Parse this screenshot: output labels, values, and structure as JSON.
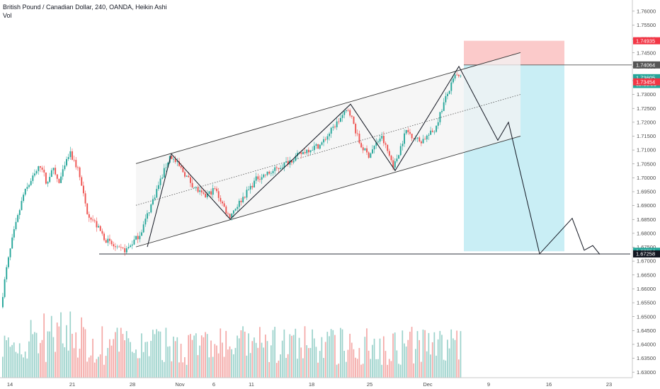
{
  "header": {
    "title": "British Pound / Canadian Dollar, 240, OANDA, Heikin Ashi",
    "volume_label": "Vol"
  },
  "colors": {
    "up": "#26a69a",
    "down": "#ef5350",
    "up_volume": "#9bd2cb",
    "down_volume": "#f4a8a6",
    "stop_zone": "#fbcaca",
    "target_zone": "#c9eef5",
    "channel_fill": "#f3f3f3",
    "line": "#131722"
  },
  "chart_data": {
    "type": "candlestick",
    "instrument": "British Pound / Canadian Dollar",
    "timeframe": "240",
    "source": "OANDA",
    "style": "Heikin Ashi",
    "y_axis": {
      "ylim": [
        1.6275,
        1.7625
      ],
      "ticks": [
        "1.76000",
        "1.75500",
        "1.75000",
        "1.74500",
        "1.74000",
        "1.73500",
        "1.73000",
        "1.72500",
        "1.72000",
        "1.71500",
        "1.71000",
        "1.70500",
        "1.70000",
        "1.69500",
        "1.69000",
        "1.68500",
        "1.68000",
        "1.67500",
        "1.67000",
        "1.66500",
        "1.66000",
        "1.65500",
        "1.65000",
        "1.64500",
        "1.64000",
        "1.63500",
        "1.63000"
      ]
    },
    "x_axis": {
      "ticks": [
        "14",
        "21",
        "28",
        "Nov",
        "6",
        "11",
        "18",
        "25",
        "Dec",
        "9",
        "16",
        "23"
      ]
    },
    "price_labels": [
      {
        "text": "1.74935",
        "value": 1.74935,
        "color": "#f23645"
      },
      {
        "text": "1.74064",
        "value": 1.74064,
        "color": "#555555"
      },
      {
        "text": "1.73605",
        "value": 1.73605,
        "color": "#26a69a"
      },
      {
        "text": "02:39:29",
        "value": 1.7336,
        "color": "#26a69a"
      },
      {
        "text": "1.73454",
        "value": 1.73454,
        "color": "#f23645"
      },
      {
        "text": "1.67354",
        "value": 1.67354,
        "color": "#26a69a"
      },
      {
        "text": "1.67258",
        "value": 1.67258,
        "color": "#131722"
      }
    ],
    "anchors": [
      {
        "x": 0,
        "y": 1.648
      },
      {
        "x": 10,
        "y": 1.666
      },
      {
        "x": 20,
        "y": 1.679
      },
      {
        "x": 35,
        "y": 1.694
      },
      {
        "x": 48,
        "y": 1.7
      },
      {
        "x": 60,
        "y": 1.705
      },
      {
        "x": 68,
        "y": 1.697
      },
      {
        "x": 75,
        "y": 1.704
      },
      {
        "x": 85,
        "y": 1.698
      },
      {
        "x": 100,
        "y": 1.709
      },
      {
        "x": 112,
        "y": 1.703
      },
      {
        "x": 124,
        "y": 1.688
      },
      {
        "x": 135,
        "y": 1.684
      },
      {
        "x": 150,
        "y": 1.678
      },
      {
        "x": 168,
        "y": 1.674
      },
      {
        "x": 180,
        "y": 1.674
      },
      {
        "x": 200,
        "y": 1.68
      },
      {
        "x": 222,
        "y": 1.695
      },
      {
        "x": 242,
        "y": 1.708
      },
      {
        "x": 258,
        "y": 1.703
      },
      {
        "x": 275,
        "y": 1.697
      },
      {
        "x": 290,
        "y": 1.693
      },
      {
        "x": 305,
        "y": 1.696
      },
      {
        "x": 325,
        "y": 1.686
      },
      {
        "x": 345,
        "y": 1.693
      },
      {
        "x": 365,
        "y": 1.7
      },
      {
        "x": 385,
        "y": 1.702
      },
      {
        "x": 410,
        "y": 1.706
      },
      {
        "x": 435,
        "y": 1.71
      },
      {
        "x": 455,
        "y": 1.712
      },
      {
        "x": 475,
        "y": 1.719
      },
      {
        "x": 494,
        "y": 1.725
      },
      {
        "x": 510,
        "y": 1.712
      },
      {
        "x": 522,
        "y": 1.708
      },
      {
        "x": 540,
        "y": 1.715
      },
      {
        "x": 558,
        "y": 1.704
      },
      {
        "x": 575,
        "y": 1.717
      },
      {
        "x": 595,
        "y": 1.713
      },
      {
        "x": 615,
        "y": 1.717
      },
      {
        "x": 630,
        "y": 1.728
      },
      {
        "x": 645,
        "y": 1.737
      },
      {
        "x": 650,
        "y": 1.736
      }
    ],
    "series": [
      {
        "name": "price",
        "type": "candlestick"
      },
      {
        "name": "Vol",
        "type": "volume"
      }
    ]
  },
  "drawings": {
    "channel": {
      "upper": [
        {
          "x": 192,
          "y": 1.7051
        },
        {
          "x": 735,
          "y": 1.7451
        }
      ],
      "lower": [
        {
          "x": 192,
          "y": 1.6751
        },
        {
          "x": 735,
          "y": 1.715
        }
      ],
      "mid": [
        {
          "x": 192,
          "y": 1.6901
        },
        {
          "x": 735,
          "y": 1.73
        }
      ]
    },
    "zigzag": [
      {
        "x": 208,
        "y": 1.6751
      },
      {
        "x": 242,
        "y": 1.7086
      },
      {
        "x": 325,
        "y": 1.6851
      },
      {
        "x": 495,
        "y": 1.7265
      },
      {
        "x": 558,
        "y": 1.7026
      },
      {
        "x": 648,
        "y": 1.7401
      },
      {
        "x": 703,
        "y": 1.7135
      },
      {
        "x": 718,
        "y": 1.72
      },
      {
        "x": 762,
        "y": 1.6726
      },
      {
        "x": 808,
        "y": 1.6854
      },
      {
        "x": 825,
        "y": 1.6739
      },
      {
        "x": 837,
        "y": 1.6756
      },
      {
        "x": 847,
        "y": 1.6724
      }
    ],
    "support_line": {
      "x1": 140,
      "x2": 890,
      "value": 1.67258
    },
    "position": {
      "x1": 655,
      "x2": 797,
      "stop": 1.74935,
      "entry": 1.74064,
      "target": 1.67354
    }
  }
}
